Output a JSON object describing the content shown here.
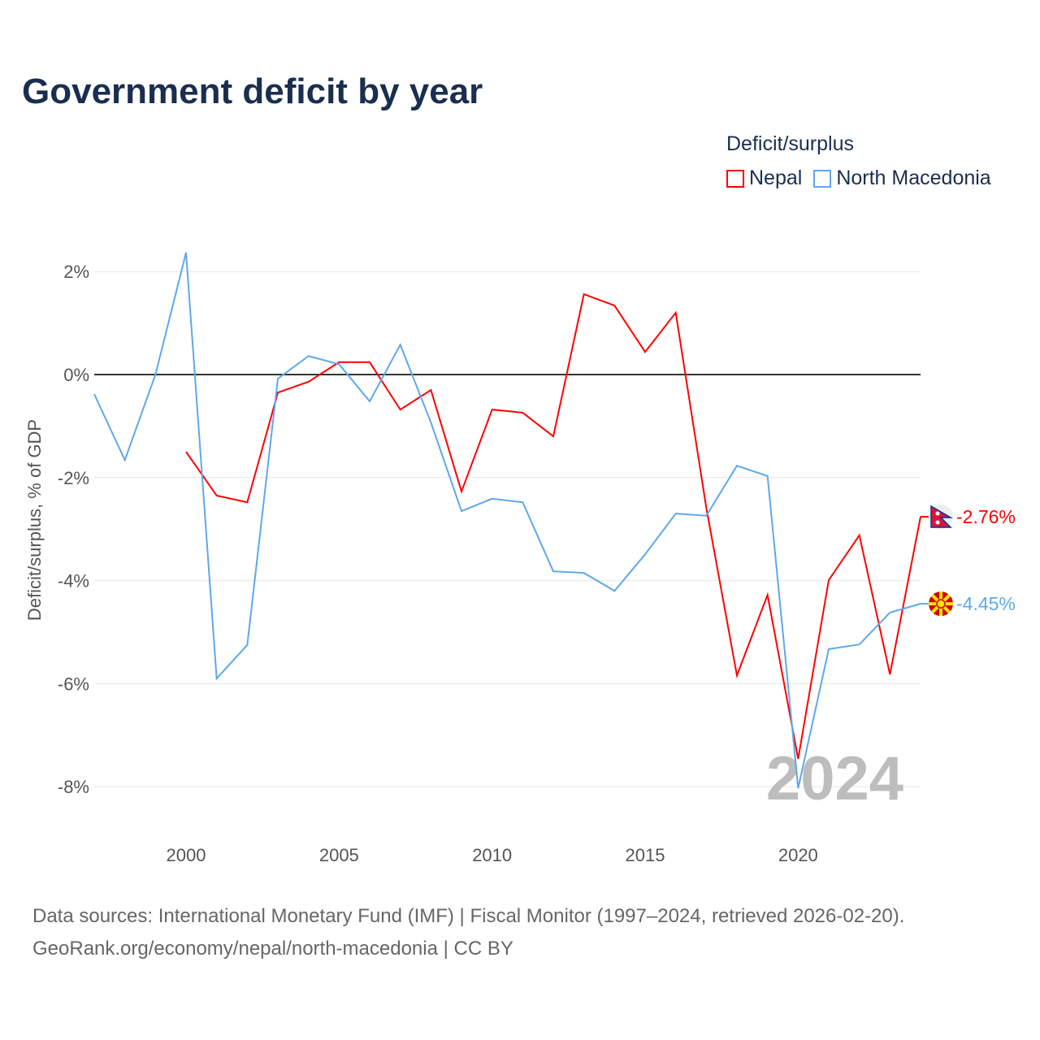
{
  "chart_data": {
    "type": "line",
    "title": "Government deficit by year",
    "ylabel": "Deficit/surplus, % of GDP",
    "xlabel": "",
    "xlim": [
      1997,
      2024
    ],
    "ylim": [
      -9,
      2.8
    ],
    "x_ticks": [
      2000,
      2005,
      2010,
      2015,
      2020
    ],
    "x_tick_labels": [
      "2000",
      "2005",
      "2010",
      "2015",
      "2020"
    ],
    "y_ticks": [
      2,
      0,
      -2,
      -4,
      -6,
      -8
    ],
    "y_tick_labels": [
      "2%",
      "0%",
      "-2%",
      "-4%",
      "-6%",
      "-8%"
    ],
    "grid": true,
    "legend_title": "Deficit/surplus",
    "legend_position": "top-right",
    "year_watermark": "2024",
    "series": [
      {
        "name": "Nepal",
        "color": "#ff0000",
        "end_label": "-2.76%",
        "flag": "nepal-flag",
        "x": [
          2000,
          2001,
          2002,
          2003,
          2004,
          2005,
          2006,
          2007,
          2008,
          2009,
          2010,
          2011,
          2012,
          2013,
          2014,
          2015,
          2016,
          2017,
          2018,
          2019,
          2020,
          2021,
          2022,
          2023,
          2024
        ],
        "values": [
          -1.5,
          -2.35,
          -2.48,
          -0.35,
          -0.14,
          0.24,
          0.24,
          -0.68,
          -0.3,
          -2.27,
          -0.68,
          -0.74,
          -1.2,
          1.56,
          1.34,
          0.44,
          1.2,
          -2.59,
          -5.84,
          -4.28,
          -7.46,
          -3.99,
          -3.12,
          -5.82,
          -2.76
        ]
      },
      {
        "name": "North Macedonia",
        "color": "#5ea8ec",
        "end_label": "-4.45%",
        "flag": "north-macedonia-flag",
        "x": [
          1997,
          1998,
          1999,
          2000,
          2001,
          2002,
          2003,
          2004,
          2005,
          2006,
          2007,
          2008,
          2009,
          2010,
          2011,
          2012,
          2013,
          2014,
          2015,
          2016,
          2017,
          2018,
          2019,
          2020,
          2021,
          2022,
          2023,
          2024
        ],
        "values": [
          -0.38,
          -1.66,
          0.0,
          2.37,
          -5.9,
          -5.25,
          -0.08,
          0.36,
          0.2,
          -0.52,
          0.58,
          -0.93,
          -2.65,
          -2.41,
          -2.48,
          -3.82,
          -3.85,
          -4.2,
          -3.49,
          -2.7,
          -2.74,
          -1.77,
          -1.97,
          -8.03,
          -5.33,
          -5.24,
          -4.62,
          -4.45
        ]
      }
    ]
  },
  "footer": {
    "line1": "Data sources: International Monetary Fund (IMF) | Fiscal Monitor (1997–2024, retrieved 2026-02-20).",
    "line2": "GeoRank.org/economy/nepal/north-macedonia | CC BY"
  }
}
